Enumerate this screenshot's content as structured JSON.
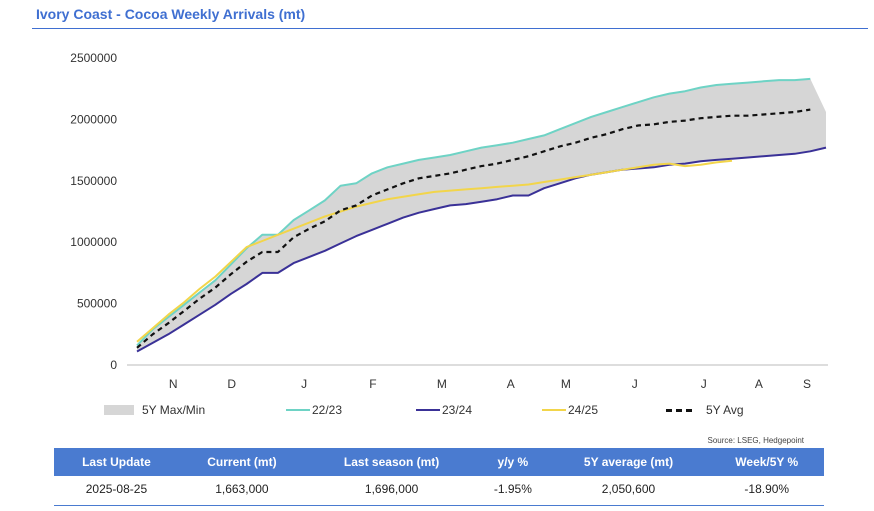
{
  "header": {
    "title": "Ivory Coast - Cocoa Weekly Arrivals (mt)"
  },
  "chart_data": {
    "type": "line",
    "x_unit": "weeks of season (Oct-Sep)",
    "month_labels": [
      "N",
      "D",
      "J",
      "F",
      "M",
      "A",
      "M",
      "J",
      "J",
      "A",
      "S"
    ],
    "ylim": [
      0,
      2500000
    ],
    "yticks": [
      "0",
      "500000",
      "1000000",
      "1500000",
      "2000000",
      "2500000"
    ],
    "band": {
      "name": "5Y Max/Min",
      "color": "#d6d6d6",
      "max": [
        160000,
        290000,
        390000,
        490000,
        590000,
        690000,
        820000,
        950000,
        1060000,
        1060000,
        1180000,
        1260000,
        1340000,
        1460000,
        1480000,
        1560000,
        1610000,
        1640000,
        1670000,
        1690000,
        1710000,
        1740000,
        1770000,
        1790000,
        1810000,
        1840000,
        1870000,
        1920000,
        1970000,
        2020000,
        2060000,
        2100000,
        2140000,
        2180000,
        2210000,
        2230000,
        2260000,
        2280000,
        2290000,
        2300000,
        2310000,
        2320000,
        2320000,
        2330000,
        2060000
      ],
      "min": [
        110000,
        180000,
        250000,
        330000,
        410000,
        490000,
        580000,
        660000,
        750000,
        750000,
        830000,
        880000,
        930000,
        990000,
        1050000,
        1100000,
        1150000,
        1200000,
        1240000,
        1270000,
        1300000,
        1310000,
        1330000,
        1350000,
        1380000,
        1380000,
        1440000,
        1480000,
        1520000,
        1550000,
        1570000,
        1590000,
        1600000,
        1610000,
        1630000,
        1640000,
        1660000,
        1670000,
        1680000,
        1690000,
        1700000,
        1710000,
        1720000,
        1740000,
        1770000
      ]
    },
    "series": [
      {
        "name": "22/23",
        "color": "#6ed3c5",
        "values": [
          160000,
          290000,
          390000,
          490000,
          590000,
          690000,
          820000,
          950000,
          1060000,
          1060000,
          1180000,
          1260000,
          1340000,
          1460000,
          1480000,
          1560000,
          1610000,
          1640000,
          1670000,
          1690000,
          1710000,
          1740000,
          1770000,
          1790000,
          1810000,
          1840000,
          1870000,
          1920000,
          1970000,
          2020000,
          2060000,
          2100000,
          2140000,
          2180000,
          2210000,
          2230000,
          2260000,
          2280000,
          2290000,
          2300000,
          2310000,
          2320000,
          2320000,
          2330000,
          null
        ]
      },
      {
        "name": "23/24",
        "color": "#3a3197",
        "values": [
          110000,
          180000,
          250000,
          330000,
          410000,
          490000,
          580000,
          660000,
          750000,
          750000,
          830000,
          880000,
          930000,
          990000,
          1050000,
          1100000,
          1150000,
          1200000,
          1240000,
          1270000,
          1300000,
          1310000,
          1330000,
          1350000,
          1380000,
          1380000,
          1440000,
          1480000,
          1520000,
          1550000,
          1570000,
          1590000,
          1600000,
          1610000,
          1630000,
          1640000,
          1660000,
          1670000,
          1680000,
          1690000,
          1700000,
          1710000,
          1720000,
          1740000,
          1770000
        ]
      },
      {
        "name": "24/25",
        "color": "#f2d54a",
        "values": [
          190000,
          300000,
          410000,
          510000,
          620000,
          720000,
          840000,
          960000,
          1010000,
          1060000,
          1110000,
          1160000,
          1210000,
          1250000,
          1290000,
          1320000,
          1350000,
          1370000,
          1390000,
          1410000,
          1420000,
          1430000,
          1440000,
          1450000,
          1460000,
          1470000,
          1490000,
          1510000,
          1530000,
          1550000,
          1570000,
          1590000,
          1610000,
          1630000,
          1640000,
          1620000,
          1630000,
          1650000,
          1663000,
          null,
          null,
          null,
          null,
          null,
          null
        ]
      },
      {
        "name": "5Y Avg",
        "color": "#111111",
        "dashed": true,
        "values": [
          140000,
          250000,
          340000,
          440000,
          540000,
          630000,
          740000,
          840000,
          920000,
          920000,
          1040000,
          1110000,
          1170000,
          1260000,
          1300000,
          1380000,
          1430000,
          1480000,
          1520000,
          1540000,
          1560000,
          1590000,
          1620000,
          1640000,
          1670000,
          1700000,
          1740000,
          1780000,
          1810000,
          1850000,
          1880000,
          1920000,
          1950000,
          1960000,
          1980000,
          1990000,
          2010000,
          2020000,
          2030000,
          2030000,
          2040000,
          2050000,
          2060000,
          2080000,
          null
        ]
      }
    ],
    "legend": "bottom",
    "grid": false
  },
  "source": "Source: LSEG, Hedgepoint",
  "stats_table": {
    "headers": [
      "Last Update",
      "Current (mt)",
      "Last season (mt)",
      "y/y %",
      "5Y average (mt)",
      "Week/5Y %"
    ],
    "row": [
      "2025-08-25",
      "1,663,000",
      "1,696,000",
      "-1.95%",
      "2,050,600",
      "-18.90%"
    ]
  }
}
